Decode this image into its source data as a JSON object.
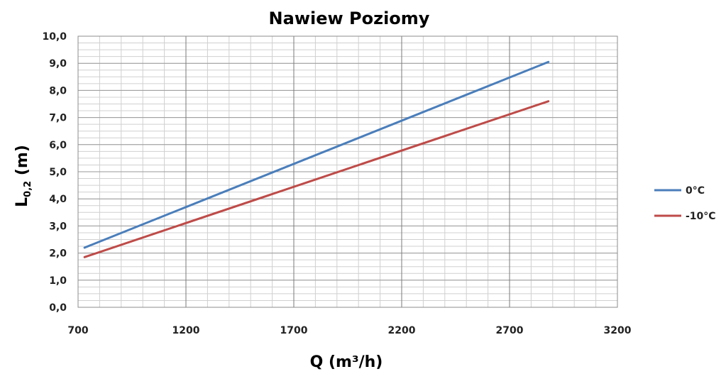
{
  "chart_data": {
    "type": "line",
    "title": "Nawiew Poziomy",
    "xlabel": "Q (m³/h)",
    "ylabel": {
      "main": "L",
      "sub": "0,2",
      "unit": " (m)"
    },
    "xlim": [
      700,
      3200
    ],
    "ylim": [
      0,
      10
    ],
    "xticks": [
      700,
      1200,
      1700,
      2200,
      2700,
      3200
    ],
    "yticks": [
      "0,0",
      "1,0",
      "2,0",
      "3,0",
      "4,0",
      "5,0",
      "6,0",
      "7,0",
      "8,0",
      "9,0",
      "10,0"
    ],
    "grid": true,
    "legend_position": "right",
    "series": [
      {
        "name": "0°C",
        "color": "#4a7ebb",
        "x": [
          730,
          2880
        ],
        "y": [
          2.2,
          9.05
        ]
      },
      {
        "name": "-10°C",
        "color": "#be4b48",
        "x": [
          730,
          2880
        ],
        "y": [
          1.85,
          7.6
        ]
      }
    ]
  }
}
